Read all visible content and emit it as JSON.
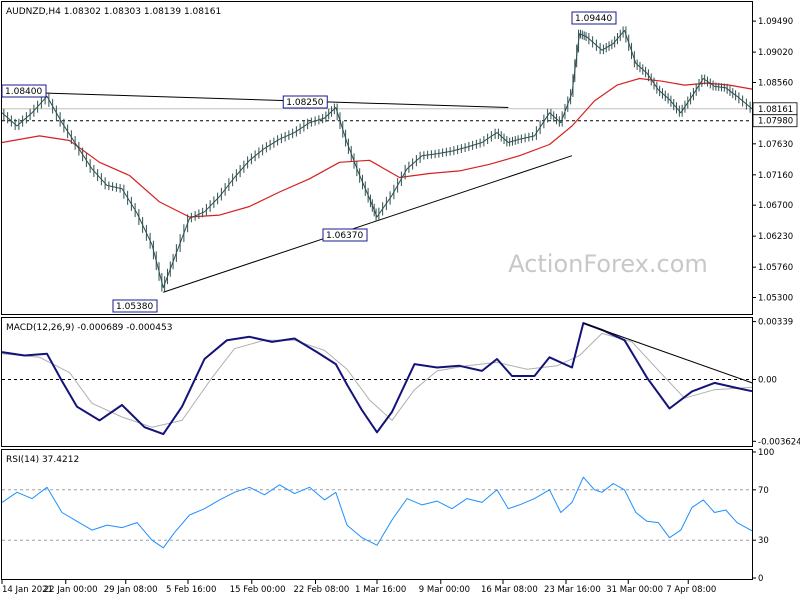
{
  "header": {
    "price_header": "AUDNZD,H4  1.08302 1.08303 1.08139 1.08161",
    "macd_header": "MACD(12,26,9) -0.000689 -0.000453",
    "rsi_header": "RSI(14) 37.4212",
    "watermark": "ActionForex.com"
  },
  "colors": {
    "price": "#2f4f4f",
    "ma": "#d82020",
    "macd": "#13137a",
    "macd_signal": "#b0b0b0",
    "rsi": "#1e90ff",
    "trendline": "#000000",
    "label_border": "#1a1a8c",
    "watermark": "#c8c8c8"
  },
  "chart_data": [
    {
      "type": "line",
      "panel": "price",
      "title": "AUDNZD,H4",
      "ohlc": {
        "open": 1.08302,
        "high": 1.08303,
        "low": 1.08139,
        "close": 1.08161
      },
      "x_tick_labels": [
        "14 Jan 2021",
        "22 Jan 00:00",
        "29 Jan 08:00",
        "5 Feb 16:00",
        "15 Feb 00:00",
        "22 Feb 08:00",
        "1 Mar 16:00",
        "9 Mar 00:00",
        "16 Mar 08:00",
        "23 Mar 16:00",
        "31 Mar 00:00",
        "7 Apr 08:00"
      ],
      "ylim": [
        1.0505,
        1.0978
      ],
      "y_tick_labels": [
        "1.09490",
        "1.09020",
        "1.08560",
        "1.08161",
        "1.07980",
        "1.07630",
        "1.07160",
        "1.06700",
        "1.06230",
        "1.05760",
        "1.05300"
      ],
      "current_price": 1.08161,
      "horizontal_level": 1.0798,
      "annotations": [
        "1.08400",
        "1.08250",
        "1.06370",
        "1.05380",
        "1.09440"
      ],
      "close_series": [
        {
          "x": 0,
          "y": 1.081
        },
        {
          "x": 0.02,
          "y": 1.079
        },
        {
          "x": 0.04,
          "y": 1.081
        },
        {
          "x": 0.06,
          "y": 1.0835
        },
        {
          "x": 0.08,
          "y": 1.0795
        },
        {
          "x": 0.1,
          "y": 1.076
        },
        {
          "x": 0.12,
          "y": 1.0725
        },
        {
          "x": 0.14,
          "y": 1.07
        },
        {
          "x": 0.16,
          "y": 1.0695
        },
        {
          "x": 0.18,
          "y": 1.0658
        },
        {
          "x": 0.2,
          "y": 1.061
        },
        {
          "x": 0.215,
          "y": 1.0545
        },
        {
          "x": 0.23,
          "y": 1.059
        },
        {
          "x": 0.25,
          "y": 1.065
        },
        {
          "x": 0.27,
          "y": 1.066
        },
        {
          "x": 0.29,
          "y": 1.0683
        },
        {
          "x": 0.31,
          "y": 1.0712
        },
        {
          "x": 0.33,
          "y": 1.0738
        },
        {
          "x": 0.35,
          "y": 1.0756
        },
        {
          "x": 0.37,
          "y": 1.077
        },
        {
          "x": 0.39,
          "y": 1.078
        },
        {
          "x": 0.41,
          "y": 1.0795
        },
        {
          "x": 0.43,
          "y": 1.0802
        },
        {
          "x": 0.445,
          "y": 1.0818
        },
        {
          "x": 0.46,
          "y": 1.0765
        },
        {
          "x": 0.475,
          "y": 1.072
        },
        {
          "x": 0.49,
          "y": 1.068
        },
        {
          "x": 0.5,
          "y": 1.0652
        },
        {
          "x": 0.52,
          "y": 1.0685
        },
        {
          "x": 0.54,
          "y": 1.0725
        },
        {
          "x": 0.56,
          "y": 1.0745
        },
        {
          "x": 0.58,
          "y": 1.0748
        },
        {
          "x": 0.6,
          "y": 1.0752
        },
        {
          "x": 0.62,
          "y": 1.0758
        },
        {
          "x": 0.64,
          "y": 1.0765
        },
        {
          "x": 0.66,
          "y": 1.078
        },
        {
          "x": 0.675,
          "y": 1.0765
        },
        {
          "x": 0.69,
          "y": 1.077
        },
        {
          "x": 0.71,
          "y": 1.0775
        },
        {
          "x": 0.73,
          "y": 1.081
        },
        {
          "x": 0.745,
          "y": 1.0795
        },
        {
          "x": 0.76,
          "y": 1.084
        },
        {
          "x": 0.77,
          "y": 1.093
        },
        {
          "x": 0.78,
          "y": 1.0925
        },
        {
          "x": 0.8,
          "y": 1.0905
        },
        {
          "x": 0.815,
          "y": 1.0915
        },
        {
          "x": 0.83,
          "y": 1.0935
        },
        {
          "x": 0.845,
          "y": 1.0885
        },
        {
          "x": 0.86,
          "y": 1.087
        },
        {
          "x": 0.875,
          "y": 1.0845
        },
        {
          "x": 0.89,
          "y": 1.083
        },
        {
          "x": 0.905,
          "y": 1.081
        },
        {
          "x": 0.92,
          "y": 1.0835
        },
        {
          "x": 0.935,
          "y": 1.0862
        },
        {
          "x": 0.95,
          "y": 1.085
        },
        {
          "x": 0.965,
          "y": 1.0848
        },
        {
          "x": 0.98,
          "y": 1.0835
        },
        {
          "x": 1,
          "y": 1.08161
        }
      ],
      "ma_series": [
        {
          "x": 0,
          "y": 1.0765
        },
        {
          "x": 0.05,
          "y": 1.0775
        },
        {
          "x": 0.09,
          "y": 1.0768
        },
        {
          "x": 0.13,
          "y": 1.0735
        },
        {
          "x": 0.17,
          "y": 1.0715
        },
        {
          "x": 0.21,
          "y": 1.0675
        },
        {
          "x": 0.25,
          "y": 1.0652
        },
        {
          "x": 0.29,
          "y": 1.0655
        },
        {
          "x": 0.33,
          "y": 1.0668
        },
        {
          "x": 0.37,
          "y": 1.069
        },
        {
          "x": 0.41,
          "y": 1.071
        },
        {
          "x": 0.45,
          "y": 1.0735
        },
        {
          "x": 0.49,
          "y": 1.0738
        },
        {
          "x": 0.53,
          "y": 1.0712
        },
        {
          "x": 0.57,
          "y": 1.0718
        },
        {
          "x": 0.61,
          "y": 1.0722
        },
        {
          "x": 0.65,
          "y": 1.0732
        },
        {
          "x": 0.69,
          "y": 1.0745
        },
        {
          "x": 0.73,
          "y": 1.0762
        },
        {
          "x": 0.76,
          "y": 1.079
        },
        {
          "x": 0.79,
          "y": 1.0828
        },
        {
          "x": 0.82,
          "y": 1.0852
        },
        {
          "x": 0.85,
          "y": 1.0862
        },
        {
          "x": 0.88,
          "y": 1.0858
        },
        {
          "x": 0.91,
          "y": 1.0852
        },
        {
          "x": 0.94,
          "y": 1.0855
        },
        {
          "x": 0.97,
          "y": 1.0852
        },
        {
          "x": 1,
          "y": 1.0846
        }
      ],
      "trendlines": [
        {
          "x1": 0,
          "y1": 1.0842,
          "x2": 0.675,
          "y2": 1.0818
        },
        {
          "x1": 0.215,
          "y1": 1.0538,
          "x2": 0.76,
          "y2": 1.0745
        }
      ]
    },
    {
      "type": "line",
      "panel": "macd",
      "title": "MACD(12,26,9)",
      "values_shown": [
        -0.000689,
        -0.000453
      ],
      "ylim": [
        -0.0039,
        0.0036
      ],
      "y_tick_labels": [
        "0.00339",
        "0.00",
        "-0.003624"
      ],
      "zero_line": 0,
      "macd_series": [
        {
          "x": 0,
          "y": 0.0016
        },
        {
          "x": 0.03,
          "y": 0.0014
        },
        {
          "x": 0.06,
          "y": 0.0015
        },
        {
          "x": 0.08,
          "y": -0.0001
        },
        {
          "x": 0.1,
          "y": -0.0016
        },
        {
          "x": 0.13,
          "y": -0.0024
        },
        {
          "x": 0.16,
          "y": -0.0015
        },
        {
          "x": 0.19,
          "y": -0.0028
        },
        {
          "x": 0.215,
          "y": -0.0032
        },
        {
          "x": 0.24,
          "y": -0.0016
        },
        {
          "x": 0.27,
          "y": 0.0012
        },
        {
          "x": 0.3,
          "y": 0.0023
        },
        {
          "x": 0.33,
          "y": 0.0025
        },
        {
          "x": 0.36,
          "y": 0.0022
        },
        {
          "x": 0.39,
          "y": 0.0024
        },
        {
          "x": 0.42,
          "y": 0.0016
        },
        {
          "x": 0.445,
          "y": 0.0009
        },
        {
          "x": 0.46,
          "y": -0.0003
        },
        {
          "x": 0.48,
          "y": -0.0018
        },
        {
          "x": 0.5,
          "y": -0.0031
        },
        {
          "x": 0.52,
          "y": -0.0019
        },
        {
          "x": 0.55,
          "y": 0.0009
        },
        {
          "x": 0.58,
          "y": 0.0007
        },
        {
          "x": 0.61,
          "y": 0.0008
        },
        {
          "x": 0.64,
          "y": 0.0005
        },
        {
          "x": 0.66,
          "y": 0.0012
        },
        {
          "x": 0.68,
          "y": 0.0002
        },
        {
          "x": 0.71,
          "y": 0.0002
        },
        {
          "x": 0.73,
          "y": 0.0013
        },
        {
          "x": 0.76,
          "y": 0.0007
        },
        {
          "x": 0.775,
          "y": 0.0033
        },
        {
          "x": 0.8,
          "y": 0.0029
        },
        {
          "x": 0.83,
          "y": 0.0023
        },
        {
          "x": 0.86,
          "y": 0.0001
        },
        {
          "x": 0.89,
          "y": -0.0017
        },
        {
          "x": 0.92,
          "y": -0.0007
        },
        {
          "x": 0.95,
          "y": -0.0002
        },
        {
          "x": 0.98,
          "y": -0.0005
        },
        {
          "x": 1,
          "y": -0.000689
        }
      ],
      "signal_series": [
        {
          "x": 0,
          "y": 0.0015
        },
        {
          "x": 0.05,
          "y": 0.0013
        },
        {
          "x": 0.09,
          "y": 0.0004
        },
        {
          "x": 0.12,
          "y": -0.0014
        },
        {
          "x": 0.16,
          "y": -0.0022
        },
        {
          "x": 0.2,
          "y": -0.0028
        },
        {
          "x": 0.24,
          "y": -0.0024
        },
        {
          "x": 0.28,
          "y": 0.0001
        },
        {
          "x": 0.31,
          "y": 0.0018
        },
        {
          "x": 0.35,
          "y": 0.0023
        },
        {
          "x": 0.39,
          "y": 0.0023
        },
        {
          "x": 0.43,
          "y": 0.0017
        },
        {
          "x": 0.46,
          "y": 0.0006
        },
        {
          "x": 0.49,
          "y": -0.0012
        },
        {
          "x": 0.52,
          "y": -0.0024
        },
        {
          "x": 0.55,
          "y": -0.0006
        },
        {
          "x": 0.58,
          "y": 0.0005
        },
        {
          "x": 0.62,
          "y": 0.0008
        },
        {
          "x": 0.66,
          "y": 0.001
        },
        {
          "x": 0.7,
          "y": 0.0006
        },
        {
          "x": 0.74,
          "y": 0.0008
        },
        {
          "x": 0.77,
          "y": 0.0014
        },
        {
          "x": 0.8,
          "y": 0.0027
        },
        {
          "x": 0.84,
          "y": 0.0022
        },
        {
          "x": 0.88,
          "y": 0.0003
        },
        {
          "x": 0.91,
          "y": -0.0011
        },
        {
          "x": 0.95,
          "y": -0.0006
        },
        {
          "x": 1,
          "y": -0.000453
        }
      ],
      "trendlines": [
        {
          "x1": 0.775,
          "y1": 0.0033,
          "x2": 1,
          "y2": -0.0002
        }
      ]
    },
    {
      "type": "line",
      "panel": "rsi",
      "title": "RSI(14)",
      "value_shown": 37.4212,
      "ylim": [
        0,
        100
      ],
      "y_tick_labels": [
        "100",
        "70",
        "30",
        "0"
      ],
      "levels": [
        70,
        30
      ],
      "rsi_series": [
        {
          "x": 0,
          "y": 60
        },
        {
          "x": 0.02,
          "y": 68
        },
        {
          "x": 0.04,
          "y": 63
        },
        {
          "x": 0.06,
          "y": 72
        },
        {
          "x": 0.08,
          "y": 52
        },
        {
          "x": 0.1,
          "y": 45
        },
        {
          "x": 0.12,
          "y": 38
        },
        {
          "x": 0.14,
          "y": 42
        },
        {
          "x": 0.16,
          "y": 40
        },
        {
          "x": 0.18,
          "y": 44
        },
        {
          "x": 0.2,
          "y": 30
        },
        {
          "x": 0.215,
          "y": 24
        },
        {
          "x": 0.23,
          "y": 36
        },
        {
          "x": 0.25,
          "y": 50
        },
        {
          "x": 0.27,
          "y": 55
        },
        {
          "x": 0.29,
          "y": 62
        },
        {
          "x": 0.31,
          "y": 68
        },
        {
          "x": 0.33,
          "y": 72
        },
        {
          "x": 0.35,
          "y": 66
        },
        {
          "x": 0.37,
          "y": 74
        },
        {
          "x": 0.39,
          "y": 67
        },
        {
          "x": 0.41,
          "y": 72
        },
        {
          "x": 0.43,
          "y": 62
        },
        {
          "x": 0.445,
          "y": 68
        },
        {
          "x": 0.46,
          "y": 42
        },
        {
          "x": 0.48,
          "y": 32
        },
        {
          "x": 0.5,
          "y": 26
        },
        {
          "x": 0.52,
          "y": 46
        },
        {
          "x": 0.54,
          "y": 63
        },
        {
          "x": 0.56,
          "y": 58
        },
        {
          "x": 0.58,
          "y": 61
        },
        {
          "x": 0.6,
          "y": 55
        },
        {
          "x": 0.62,
          "y": 63
        },
        {
          "x": 0.64,
          "y": 60
        },
        {
          "x": 0.66,
          "y": 70
        },
        {
          "x": 0.675,
          "y": 55
        },
        {
          "x": 0.69,
          "y": 58
        },
        {
          "x": 0.71,
          "y": 63
        },
        {
          "x": 0.73,
          "y": 70
        },
        {
          "x": 0.745,
          "y": 52
        },
        {
          "x": 0.76,
          "y": 60
        },
        {
          "x": 0.775,
          "y": 80
        },
        {
          "x": 0.79,
          "y": 70
        },
        {
          "x": 0.8,
          "y": 68
        },
        {
          "x": 0.815,
          "y": 75
        },
        {
          "x": 0.83,
          "y": 70
        },
        {
          "x": 0.845,
          "y": 52
        },
        {
          "x": 0.86,
          "y": 45
        },
        {
          "x": 0.875,
          "y": 44
        },
        {
          "x": 0.89,
          "y": 32
        },
        {
          "x": 0.905,
          "y": 38
        },
        {
          "x": 0.92,
          "y": 56
        },
        {
          "x": 0.935,
          "y": 62
        },
        {
          "x": 0.95,
          "y": 52
        },
        {
          "x": 0.965,
          "y": 54
        },
        {
          "x": 0.98,
          "y": 44
        },
        {
          "x": 1,
          "y": 37.4212
        }
      ]
    }
  ]
}
